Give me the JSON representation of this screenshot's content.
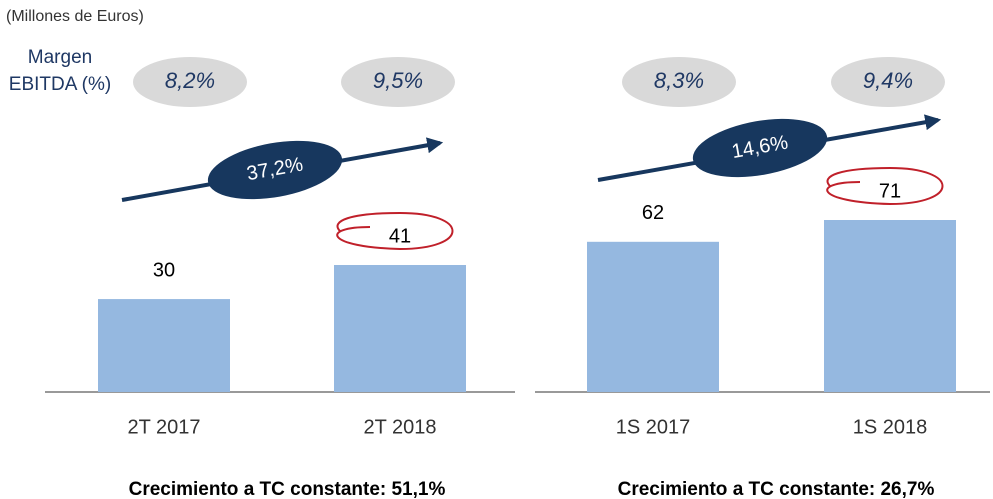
{
  "subtitle": "(Millones de Euros)",
  "row_label": "Margen EBITDA (%)",
  "chart_data": [
    {
      "type": "bar",
      "categories": [
        "2T 2017",
        "2T 2018"
      ],
      "values": [
        30,
        41
      ],
      "color": "#95b8e0",
      "margins": [
        "8,2%",
        "9,5%"
      ],
      "growth": "37,2%",
      "footnote": "Crecimiento a TC constante: 51,1%"
    },
    {
      "type": "bar",
      "categories": [
        "1S 2017",
        "1S 2018"
      ],
      "values": [
        62,
        71
      ],
      "color": "#95b8e0",
      "margins": [
        "8,3%",
        "9,4%"
      ],
      "growth": "14,6%",
      "footnote": "Crecimiento a TC constante: 26,7%"
    }
  ]
}
